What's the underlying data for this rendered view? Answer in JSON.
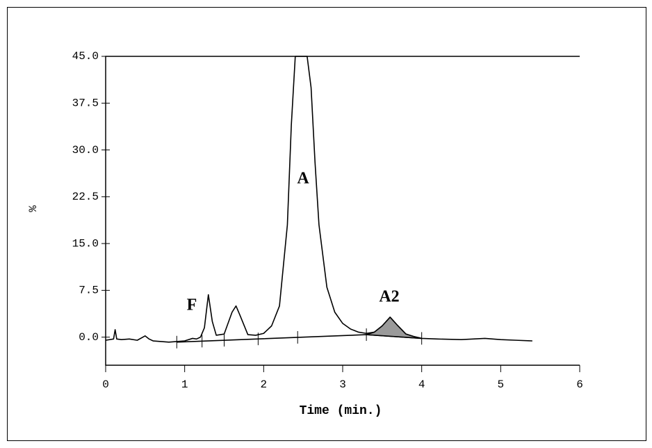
{
  "chart_data": {
    "type": "line",
    "x_label": "Time (min.)",
    "y_label": "%",
    "x": [
      0,
      0.1,
      0.12,
      0.14,
      0.2,
      0.3,
      0.4,
      0.5,
      0.55,
      0.6,
      0.8,
      0.9,
      1.0,
      1.1,
      1.15,
      1.2,
      1.25,
      1.3,
      1.35,
      1.4,
      1.5,
      1.6,
      1.65,
      1.7,
      1.8,
      1.9,
      2.0,
      2.1,
      2.2,
      2.3,
      2.35,
      2.4,
      2.45,
      2.55,
      2.6,
      2.65,
      2.7,
      2.8,
      2.9,
      3.0,
      3.1,
      3.2,
      3.3,
      3.4,
      3.5,
      3.6,
      3.7,
      3.8,
      3.9,
      4.0,
      4.2,
      4.5,
      4.8,
      5.0,
      5.2,
      5.4
    ],
    "series": [
      {
        "color": "#000000",
        "values": [
          -0.5,
          -0.3,
          1.2,
          -0.3,
          -0.4,
          -0.3,
          -0.5,
          0.2,
          -0.3,
          -0.6,
          -0.8,
          -0.7,
          -0.6,
          -0.2,
          -0.3,
          0.0,
          1.5,
          6.8,
          2.5,
          0.3,
          0.5,
          4.0,
          5.0,
          3.5,
          0.4,
          0.3,
          0.6,
          1.8,
          5,
          18,
          34,
          45,
          45,
          45,
          40,
          28,
          18,
          8,
          4,
          2.2,
          1.3,
          0.8,
          0.6,
          0.8,
          1.8,
          3.2,
          1.8,
          0.5,
          0.1,
          -0.2,
          -0.3,
          -0.4,
          -0.2,
          -0.4,
          -0.5,
          -0.6
        ]
      },
      {
        "color": "#000000",
        "x": [
          0.9,
          3.3,
          4.0
        ],
        "values": [
          -0.8,
          0.4,
          -0.2
        ]
      },
      {
        "color": "#000000",
        "fill": "#9a9a9a",
        "x": [
          3.3,
          3.4,
          3.5,
          3.6,
          3.7,
          3.8,
          3.9,
          4.0
        ],
        "values": [
          0.4,
          0.8,
          1.8,
          3.2,
          1.8,
          0.5,
          0.1,
          -0.2
        ]
      }
    ],
    "integration_marks": [
      0.9,
      1.22,
      1.5,
      1.93,
      2.43,
      3.3,
      4.0
    ],
    "annotations": [
      "F",
      "A",
      "A2"
    ],
    "xlim": [
      0,
      6
    ],
    "xticks": [
      0,
      1,
      2,
      3,
      4,
      5,
      6
    ],
    "ylim": [
      -4.5,
      45
    ],
    "yticks": [
      {
        "value": 0,
        "label": "0.0"
      },
      7.5,
      {
        "value": 15,
        "label": "15.0"
      },
      22.5,
      {
        "value": 30,
        "label": "30.0"
      },
      37.5,
      {
        "value": 45,
        "label": "45.0"
      }
    ],
    "grid": false
  }
}
